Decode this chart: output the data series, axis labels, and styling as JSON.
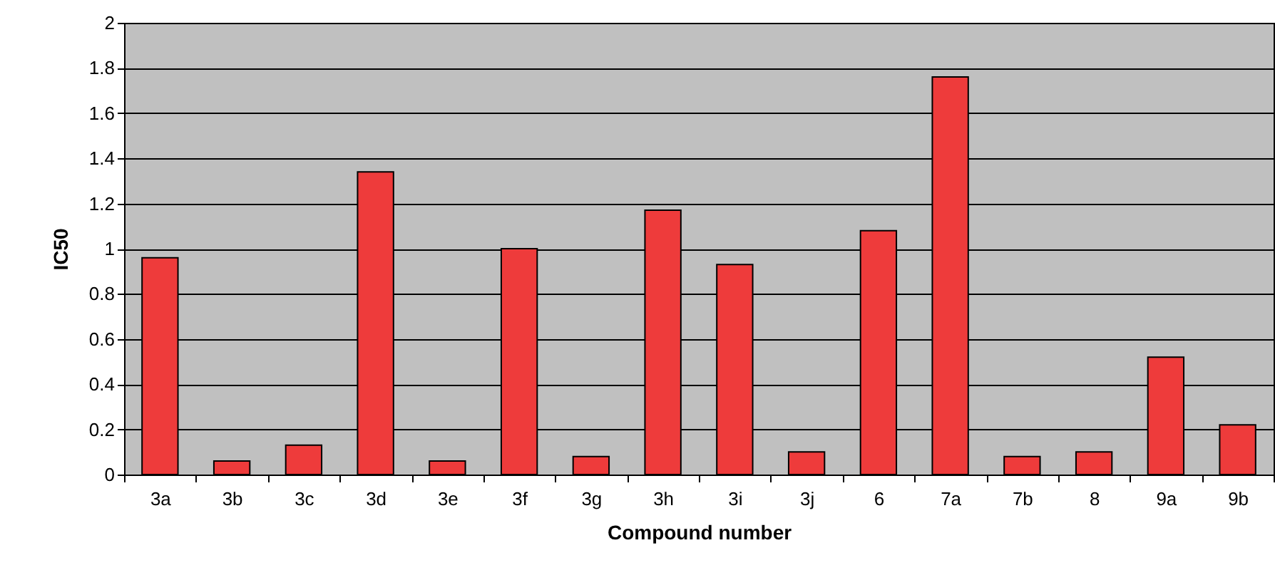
{
  "chart_data": {
    "type": "bar",
    "xlabel": "Compound number",
    "ylabel": "IC50",
    "categories": [
      "3a",
      "3b",
      "3c",
      "3d",
      "3e",
      "3f",
      "3g",
      "3h",
      "3i",
      "3j",
      "6",
      "7a",
      "7b",
      "8",
      "9a",
      "9b"
    ],
    "values": [
      0.96,
      0.06,
      0.13,
      1.34,
      0.06,
      1.0,
      0.08,
      1.17,
      0.93,
      0.1,
      1.08,
      1.76,
      0.08,
      0.1,
      0.52,
      0.22
    ],
    "color": "#ee3b3b",
    "ylim": [
      0,
      2
    ],
    "yticks": [
      0,
      0.2,
      0.4,
      0.6,
      0.8,
      1,
      1.2,
      1.4,
      1.6,
      1.8,
      2
    ],
    "grid": "y"
  }
}
